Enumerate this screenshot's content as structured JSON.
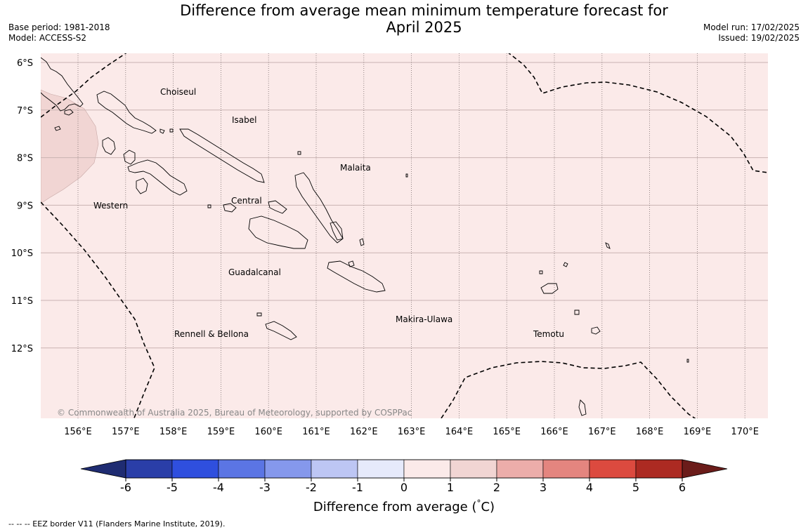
{
  "header": {
    "title_line1": "Difference from average mean minimum temperature forecast for",
    "title_line2": "April 2025",
    "base_period": "Base period: 1981-2018",
    "model": "Model: ACCESS-S2",
    "model_run": "Model run: 17/02/2025",
    "issued": "Issued: 19/02/2025"
  },
  "map": {
    "background_color": "#fbeae9",
    "warm_patch_color": "#f1d5d3",
    "lat_labels": [
      "6°S",
      "7°S",
      "8°S",
      "9°S",
      "10°S",
      "11°S",
      "12°S"
    ],
    "lon_labels": [
      "156°E",
      "157°E",
      "158°E",
      "159°E",
      "160°E",
      "161°E",
      "162°E",
      "163°E",
      "164°E",
      "165°E",
      "166°E",
      "167°E",
      "168°E",
      "169°E",
      "170°E"
    ],
    "places": [
      {
        "name": "Choiseul"
      },
      {
        "name": "Isabel"
      },
      {
        "name": "Malaita"
      },
      {
        "name": "Western"
      },
      {
        "name": "Central"
      },
      {
        "name": "Guadalcanal"
      },
      {
        "name": "Makira-Ulawa"
      },
      {
        "name": "Rennell & Bellona"
      },
      {
        "name": "Temotu"
      }
    ],
    "copyright": "© Commonwealth of Australia 2025, Bureau of Meteorology, supported by COSPPac"
  },
  "colorbar": {
    "ticks": [
      "-6",
      "-5",
      "-4",
      "-3",
      "-2",
      "-1",
      "0",
      "1",
      "2",
      "3",
      "4",
      "5",
      "6"
    ],
    "colors": [
      "#2a3ea8",
      "#2f4fde",
      "#5b75e4",
      "#8598ec",
      "#bdc6f4",
      "#e6eafb",
      "#fbeae9",
      "#f1d5d3",
      "#ecadaa",
      "#e4857f",
      "#dc4a3f",
      "#ac2a22"
    ],
    "under_color": "#1f2c72",
    "over_color": "#6b1c1a",
    "title": "Difference from average (",
    "unit_symbol": "°",
    "unit_letter": "C",
    "title_close": ")"
  },
  "footnote": "--  --  -- EEZ border V11 (Flanders Marine Institute, 2019)."
}
